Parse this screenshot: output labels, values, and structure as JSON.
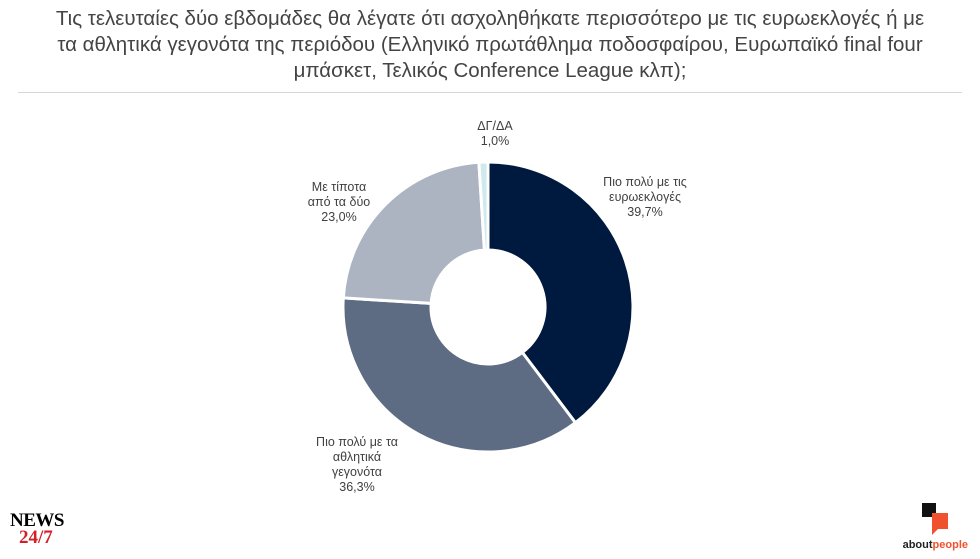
{
  "title_lines": [
    "Τις τελευταίες δύο εβδομάδες θα λέγατε ότι ασχοληθήκατε περισσότερο με τις ευρωεκλογές ή με",
    "τα αθλητικά γεγονότα της περιόδου (Ελληνικό πρωτάθλημα ποδοσφαίρου, Ευρωπαϊκό final four",
    "μπάσκετ, Τελικός Conference League κλπ);"
  ],
  "chart_data": {
    "type": "pie",
    "donut": true,
    "legend": "none",
    "slices": [
      {
        "label_lines": [
          "Πιο πολύ με τις",
          "ευρωεκλογές"
        ],
        "value": 39.7,
        "value_label": "39,7%",
        "color": "#001a3f"
      },
      {
        "label_lines": [
          "Πιο πολύ με τα",
          "αθλητικά",
          "γεγονότα"
        ],
        "value": 36.3,
        "value_label": "36,3%",
        "color": "#5d6b83"
      },
      {
        "label_lines": [
          "Με τίποτα",
          "από τα δύο"
        ],
        "value": 23.0,
        "value_label": "23,0%",
        "color": "#acb4c2"
      },
      {
        "label_lines": [
          "ΔΓ/ΔΑ"
        ],
        "value": 1.0,
        "value_label": "1,0%",
        "color": "#cfe9ec"
      }
    ]
  },
  "logos": {
    "news_top": "NEWS",
    "news_bottom": "24/7",
    "about_a": "about",
    "about_b": "people"
  }
}
